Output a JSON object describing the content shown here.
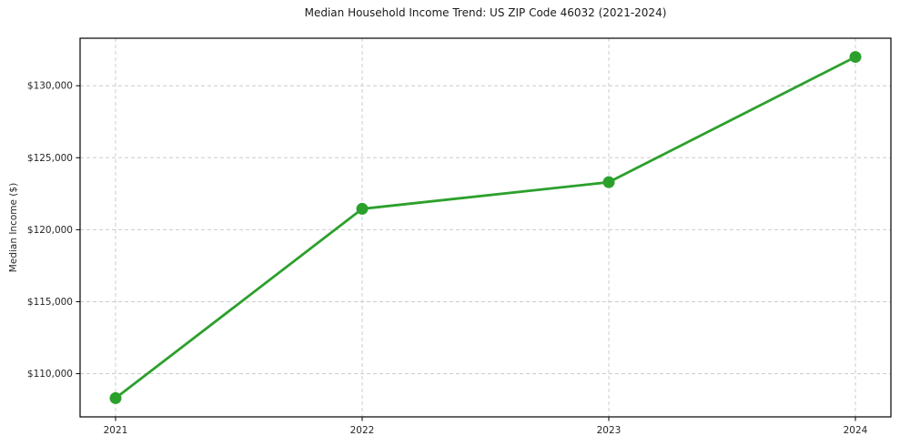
{
  "figure": {
    "background_color": "#ffffff"
  },
  "chart_data": {
    "type": "line",
    "title": "Median Household Income Trend: US ZIP Code 46032 (2021-2024)",
    "xlabel": "",
    "ylabel": "Median Income ($)",
    "x": [
      "2021",
      "2022",
      "2023",
      "2024"
    ],
    "series": [
      {
        "name": "Median Household Income",
        "values": [
          108300,
          121450,
          123300,
          132000
        ]
      }
    ],
    "ylim": [
      107000,
      133300
    ],
    "yticks": [
      110000,
      115000,
      120000,
      125000,
      130000
    ],
    "ytick_labels": [
      "$110,000",
      "$115,000",
      "$120,000",
      "$125,000",
      "$130,000"
    ],
    "grid": true,
    "grid_style": "dashed",
    "legend": "none",
    "line_color": "#2ca02c",
    "marker": "circle",
    "grid_color": "#cccccc",
    "axis_color": "#000000",
    "text_color": "#262626",
    "title_color": "#1a1a1a"
  }
}
